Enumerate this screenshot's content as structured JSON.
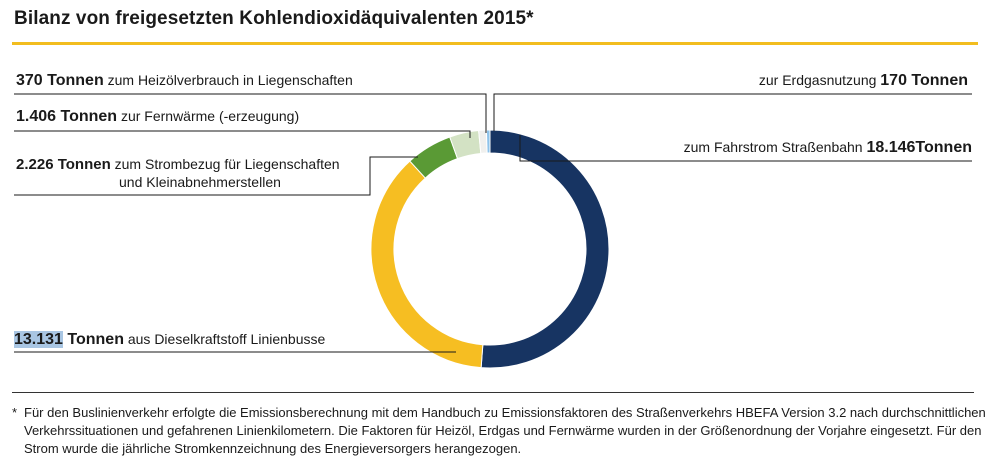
{
  "title": "Bilanz von freigesetzten Kohlendioxidäquivalenten 2015*",
  "labels": {
    "heizoel": {
      "amount": "370 Tonnen",
      "text": " zum Heizölverbrauch in Liegenschaften"
    },
    "fernwaerme": {
      "amount": "1.406 Tonnen",
      "text": " zur Fernwärme (-erzeugung)"
    },
    "strom_l1_amount": "2.226 Tonnen",
    "strom_l1_text": " zum Strombezug für Liegenschaften",
    "strom_l2": "und Kleinabnehmerstellen",
    "diesel": {
      "amount_num": "13.131",
      "amount_unit": " Tonnen",
      "text": " aus Dieselkraftstoff Linienbusse"
    },
    "erdgas": {
      "text": "zur Erdgasnutzung ",
      "amount": "170 Tonnen"
    },
    "fahrstrom": {
      "text": "zum Fahrstrom Straßenbahn ",
      "amount": "18.146Tonnen"
    }
  },
  "footnote": {
    "star": "*",
    "text": "Für den Buslinienverkehr erfolgte die Emissionsberechnung mit dem Handbuch zu Emissionsfaktoren des Straßenverkehrs HBEFA Version 3.2 nach durchschnittlichen Verkehrssituationen und gefahrenen Linienkilometern. Die Faktoren für Heizöl, Erdgas und Fernwärme wurden in der Größenordnung der Vorjahre eingesetzt. Für den Strom wurde die jährliche Stromkennzeichnung des Energieversorgers herangezogen."
  },
  "colors": {
    "accent_rule": "#f2bd1f",
    "highlight": "#a9c6e3"
  },
  "chart_data": {
    "type": "pie",
    "donut": true,
    "title": "Bilanz von freigesetzten Kohlendioxidäquivalenten 2015*",
    "unit": "Tonnen",
    "categories": [
      "Fahrstrom Straßenbahn",
      "Dieselkraftstoff Linienbusse",
      "Strombezug für Liegenschaften und Kleinabnehmerstellen",
      "Fernwärme (-erzeugung)",
      "Heizölverbrauch in Liegenschaften",
      "Erdgasnutzung"
    ],
    "values": [
      18146,
      13131,
      2226,
      1406,
      370,
      170
    ],
    "colors": [
      "#173462",
      "#f6be22",
      "#5a9a35",
      "#d3e2c4",
      "#f0f0ee",
      "#8ec3ea"
    ],
    "start": "12 o'clock",
    "direction": "clockwise"
  }
}
